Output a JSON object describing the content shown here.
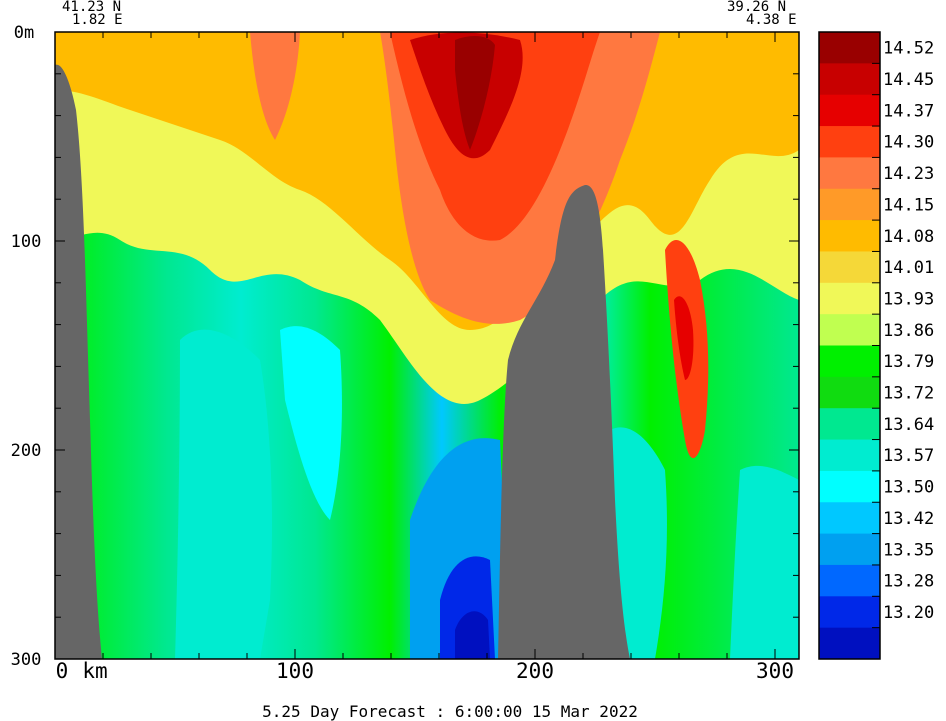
{
  "corner_left": {
    "lat": "41.23 N",
    "lon": "1.82 E"
  },
  "corner_right": {
    "lat": "39.26 N",
    "lon": "4.38 E"
  },
  "footer": "5.25 Day Forecast :  6:00:00  15 Mar 2022",
  "chart_data": {
    "type": "heatmap",
    "title": "",
    "x_axis": {
      "unit": "km",
      "range": [
        0,
        310
      ],
      "ticks": [
        "0",
        "100",
        "200",
        "300"
      ],
      "first_tick_suffix": "km"
    },
    "y_axis": {
      "unit": "m",
      "range": [
        0,
        300
      ],
      "inverted": true,
      "ticks": [
        "0m",
        "100",
        "200",
        "300"
      ]
    },
    "colorbar": {
      "labels": [
        "14.52",
        "14.45",
        "14.37",
        "14.30",
        "14.23",
        "14.15",
        "14.08",
        "14.01",
        "13.93",
        "13.86",
        "13.79",
        "13.72",
        "13.64",
        "13.57",
        "13.50",
        "13.42",
        "13.35",
        "13.28",
        "13.20"
      ],
      "colors": [
        "#990000",
        "#c80000",
        "#e60000",
        "#ff4010",
        "#ff7840",
        "#ff9a28",
        "#ffbb00",
        "#f5d838",
        "#f0f858",
        "#c0ff50",
        "#00f000",
        "#10dc10",
        "#00e890",
        "#00ecd0",
        "#00ffff",
        "#00c8ff",
        "#00a0f0",
        "#0068ff",
        "#0028e8",
        "#0010c0"
      ]
    },
    "seafloor_color": "#666666",
    "sections": [
      {
        "x_km": [
          0,
          40
        ],
        "value": 13.86
      },
      {
        "x_km": [
          40,
          90
        ],
        "value": 13.6
      },
      {
        "x_km": [
          90,
          150
        ],
        "value": 13.75
      },
      {
        "x_km": [
          150,
          200
        ],
        "value": 14.35
      },
      {
        "x_km": [
          200,
          240
        ],
        "value": 14.0
      },
      {
        "x_km": [
          240,
          310
        ],
        "value": 14.2
      }
    ]
  }
}
